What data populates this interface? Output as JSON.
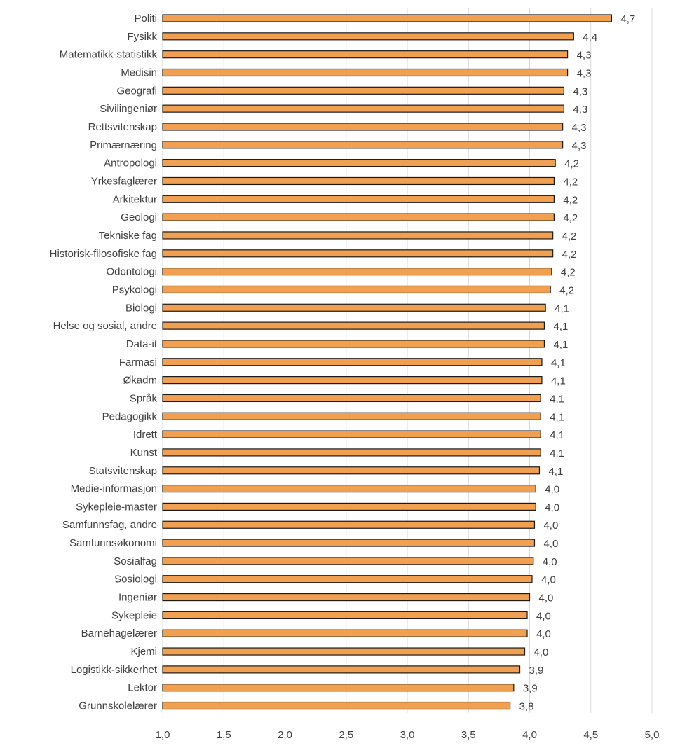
{
  "chart_data": {
    "type": "bar",
    "orientation": "horizontal",
    "bar_color": "#F0A050",
    "bar_edge_color": "#1a1a1a",
    "grid": true,
    "xlim": [
      1.0,
      5.0
    ],
    "xticks": [
      1.0,
      1.5,
      2.0,
      2.5,
      3.0,
      3.5,
      4.0,
      4.5,
      5.0
    ],
    "xtick_labels": [
      "1,0",
      "1,5",
      "2,0",
      "2,5",
      "3,0",
      "3,5",
      "4,0",
      "4,5",
      "5,0"
    ],
    "categories": [
      "Politi",
      "Fysikk",
      "Matematikk-statistikk",
      "Medisin",
      "Geografi",
      "Sivilingeniør",
      "Rettsvitenskap",
      "Primærnæring",
      "Antropologi",
      "Yrkesfaglærer",
      "Arkitektur",
      "Geologi",
      "Tekniske fag",
      "Historisk-filosofiske fag",
      "Odontologi",
      "Psykologi",
      "Biologi",
      "Helse og sosial, andre",
      "Data-it",
      "Farmasi",
      "Økadm",
      "Språk",
      "Pedagogikk",
      "Idrett",
      "Kunst",
      "Statsvitenskap",
      "Medie-informasjon",
      "Sykepleie-master",
      "Samfunnsfag, andre",
      "Samfunnsøkonomi",
      "Sosialfag",
      "Sosiologi",
      "Ingeniør",
      "Sykepleie",
      "Barnehagelærer",
      "Kjemi",
      "Logistikk-sikkerhet",
      "Lektor",
      "Grunnskolelærer"
    ],
    "values": [
      4.67,
      4.36,
      4.31,
      4.31,
      4.28,
      4.28,
      4.27,
      4.27,
      4.21,
      4.2,
      4.2,
      4.2,
      4.19,
      4.19,
      4.18,
      4.17,
      4.13,
      4.12,
      4.12,
      4.1,
      4.1,
      4.09,
      4.09,
      4.09,
      4.09,
      4.08,
      4.05,
      4.05,
      4.04,
      4.04,
      4.03,
      4.02,
      4.0,
      3.98,
      3.98,
      3.96,
      3.92,
      3.87,
      3.84
    ],
    "value_labels": [
      "4,7",
      "4,4",
      "4,3",
      "4,3",
      "4,3",
      "4,3",
      "4,3",
      "4,3",
      "4,2",
      "4,2",
      "4,2",
      "4,2",
      "4,2",
      "4,2",
      "4,2",
      "4,2",
      "4,1",
      "4,1",
      "4,1",
      "4,1",
      "4,1",
      "4,1",
      "4,1",
      "4,1",
      "4,1",
      "4,1",
      "4,0",
      "4,0",
      "4,0",
      "4,0",
      "4,0",
      "4,0",
      "4,0",
      "4,0",
      "4,0",
      "4,0",
      "3,9",
      "3,9",
      "3,8"
    ]
  }
}
